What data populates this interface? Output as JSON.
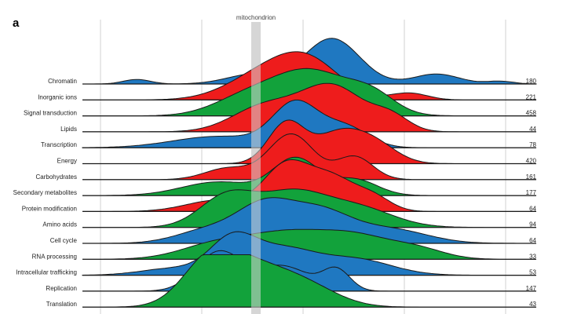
{
  "panel_label": "a",
  "chart_data": {
    "type": "area",
    "style": "ridgeline",
    "marker": {
      "label": "mitochondrion"
    },
    "colors": {
      "blue": "#1f78c1",
      "red": "#ee1c1c",
      "green": "#12a23b",
      "gridline": "#d9d9d9",
      "marker_band": "#d3d3d3"
    },
    "rows": [
      {
        "category": "Chromatin",
        "count": "180",
        "color": "blue",
        "peaks": [
          [
            0.12,
            0.03,
            0.1
          ],
          [
            0.38,
            0.06,
            0.22
          ],
          [
            0.55,
            0.06,
            1.0
          ],
          [
            0.78,
            0.05,
            0.22
          ],
          [
            0.92,
            0.03,
            0.06
          ]
        ]
      },
      {
        "category": "Inorganic ions",
        "count": "221",
        "color": "red",
        "peaks": [
          [
            0.4,
            0.08,
            0.55
          ],
          [
            0.5,
            0.07,
            0.75
          ],
          [
            0.72,
            0.04,
            0.15
          ]
        ]
      },
      {
        "category": "Signal transduction",
        "count": "458",
        "color": "green",
        "peaks": [
          [
            0.35,
            0.07,
            0.3
          ],
          [
            0.5,
            0.09,
            1.0
          ],
          [
            0.64,
            0.05,
            0.35
          ]
        ]
      },
      {
        "category": "Lipids",
        "count": "44",
        "color": "red",
        "peaks": [
          [
            0.4,
            0.07,
            0.55
          ],
          [
            0.55,
            0.07,
            1.0
          ],
          [
            0.68,
            0.04,
            0.3
          ]
        ]
      },
      {
        "category": "Transcription",
        "count": "78",
        "color": "blue",
        "peaks": [
          [
            0.3,
            0.1,
            0.25
          ],
          [
            0.47,
            0.05,
            0.95
          ],
          [
            0.58,
            0.05,
            0.45
          ]
        ]
      },
      {
        "category": "Energy",
        "count": "420",
        "color": "red",
        "peaks": [
          [
            0.45,
            0.04,
            0.9
          ],
          [
            0.56,
            0.05,
            0.6
          ],
          [
            0.64,
            0.05,
            0.45
          ]
        ]
      },
      {
        "category": "Carbohydrates",
        "count": "161",
        "color": "red",
        "peaks": [
          [
            0.32,
            0.05,
            0.25
          ],
          [
            0.46,
            0.05,
            1.0
          ],
          [
            0.6,
            0.04,
            0.5
          ]
        ]
      },
      {
        "category": "Secondary metabolites",
        "count": "177",
        "color": "green",
        "peaks": [
          [
            0.3,
            0.08,
            0.3
          ],
          [
            0.47,
            0.05,
            0.8
          ],
          [
            0.6,
            0.05,
            0.35
          ]
        ]
      },
      {
        "category": "Protein modification",
        "count": "64",
        "color": "red",
        "peaks": [
          [
            0.3,
            0.07,
            0.25
          ],
          [
            0.45,
            0.05,
            1.0
          ],
          [
            0.55,
            0.05,
            0.7
          ],
          [
            0.64,
            0.04,
            0.3
          ]
        ]
      },
      {
        "category": "Amino acids",
        "count": "94",
        "color": "green",
        "peaks": [
          [
            0.32,
            0.06,
            0.7
          ],
          [
            0.46,
            0.07,
            0.7
          ],
          [
            0.6,
            0.08,
            0.45
          ]
        ]
      },
      {
        "category": "Cell cycle",
        "count": "64",
        "color": "blue",
        "peaks": [
          [
            0.28,
            0.07,
            0.3
          ],
          [
            0.4,
            0.06,
            0.75
          ],
          [
            0.52,
            0.07,
            0.7
          ],
          [
            0.68,
            0.08,
            0.3
          ]
        ]
      },
      {
        "category": "RNA processing",
        "count": "33",
        "color": "green",
        "peaks": [
          [
            0.3,
            0.08,
            0.35
          ],
          [
            0.45,
            0.08,
            0.5
          ],
          [
            0.6,
            0.08,
            0.5
          ],
          [
            0.74,
            0.06,
            0.2
          ]
        ]
      },
      {
        "category": "Intracellular trafficking",
        "count": "53",
        "color": "blue",
        "peaks": [
          [
            0.2,
            0.07,
            0.15
          ],
          [
            0.33,
            0.05,
            0.75
          ],
          [
            0.44,
            0.07,
            0.55
          ],
          [
            0.6,
            0.08,
            0.35
          ]
        ]
      },
      {
        "category": "Replication",
        "count": "147",
        "color": "blue",
        "peaks": [
          [
            0.3,
            0.05,
            0.85
          ],
          [
            0.44,
            0.06,
            0.55
          ],
          [
            0.56,
            0.03,
            0.45
          ]
        ]
      },
      {
        "category": "Translation",
        "count": "43",
        "color": "green",
        "peaks": [
          [
            0.28,
            0.06,
            0.9
          ],
          [
            0.38,
            0.08,
            0.8
          ],
          [
            0.5,
            0.07,
            0.35
          ]
        ]
      }
    ]
  }
}
